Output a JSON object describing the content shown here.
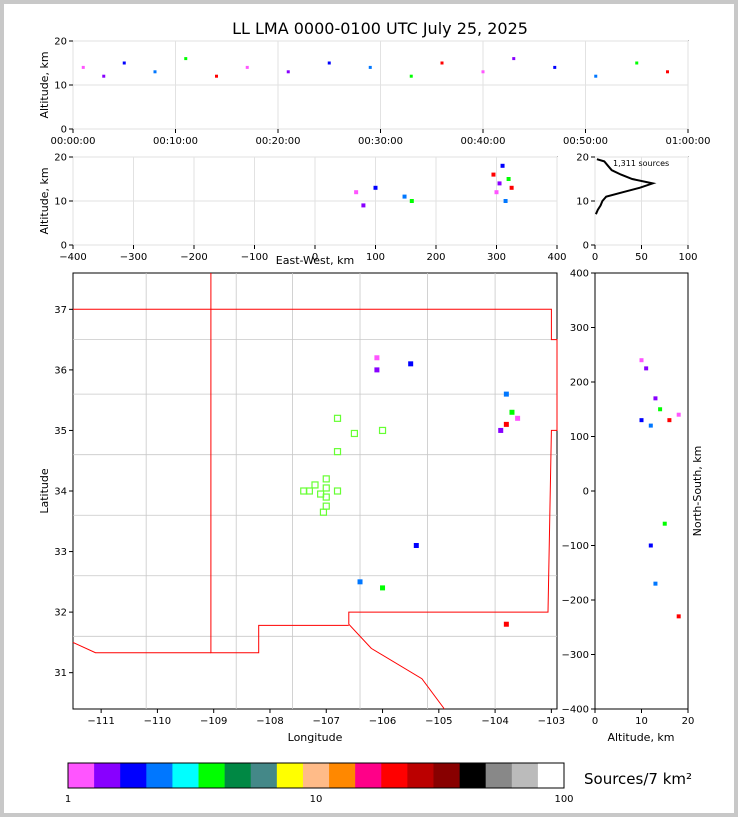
{
  "title": "LL LMA 0000-0100 UTC July 25, 2025",
  "chart_data": [
    {
      "type": "scatter",
      "panel": "time-height",
      "ylabel": "Altitude, km",
      "xlim": [
        "00:00:00",
        "01:00:00"
      ],
      "ylim": [
        0,
        20
      ],
      "xticks": [
        "00:00:00",
        "00:10:00",
        "00:20:00",
        "00:30:00",
        "00:40:00",
        "00:50:00",
        "01:00:00"
      ],
      "yticks": [
        0,
        10,
        20
      ],
      "grid": true,
      "points": [
        {
          "minute": 1,
          "alt": 14
        },
        {
          "minute": 3,
          "alt": 12
        },
        {
          "minute": 5,
          "alt": 15
        },
        {
          "minute": 8,
          "alt": 13
        },
        {
          "minute": 11,
          "alt": 16
        },
        {
          "minute": 14,
          "alt": 12
        },
        {
          "minute": 17,
          "alt": 14
        },
        {
          "minute": 21,
          "alt": 13
        },
        {
          "minute": 25,
          "alt": 15
        },
        {
          "minute": 29,
          "alt": 14
        },
        {
          "minute": 33,
          "alt": 12
        },
        {
          "minute": 36,
          "alt": 15
        },
        {
          "minute": 40,
          "alt": 13
        },
        {
          "minute": 43,
          "alt": 16
        },
        {
          "minute": 47,
          "alt": 14
        },
        {
          "minute": 51,
          "alt": 12
        },
        {
          "minute": 55,
          "alt": 15
        },
        {
          "minute": 58,
          "alt": 13
        }
      ]
    },
    {
      "type": "scatter",
      "panel": "east-west-height",
      "xlabel": "East-West, km",
      "ylabel": "Altitude, km",
      "xlim": [
        -400,
        400
      ],
      "ylim": [
        0,
        20
      ],
      "xticks": [
        -400,
        -300,
        -200,
        -100,
        0,
        100,
        200,
        300,
        400
      ],
      "yticks": [
        0,
        10,
        20
      ],
      "grid": true,
      "points": [
        {
          "x": 68,
          "alt": 12
        },
        {
          "x": 80,
          "alt": 9
        },
        {
          "x": 100,
          "alt": 13
        },
        {
          "x": 148,
          "alt": 11
        },
        {
          "x": 160,
          "alt": 10
        },
        {
          "x": 295,
          "alt": 16
        },
        {
          "x": 300,
          "alt": 12
        },
        {
          "x": 305,
          "alt": 14
        },
        {
          "x": 310,
          "alt": 18
        },
        {
          "x": 315,
          "alt": 10
        },
        {
          "x": 320,
          "alt": 15
        },
        {
          "x": 325,
          "alt": 13
        }
      ]
    },
    {
      "type": "line",
      "panel": "altitude-histogram",
      "annotation": "1,311 sources",
      "xlim": [
        0,
        100
      ],
      "ylim": [
        0,
        20
      ],
      "xticks": [
        0,
        50,
        100
      ],
      "yticks": [
        0,
        10,
        20
      ],
      "grid": true,
      "profile": [
        {
          "alt": 7,
          "count": 1
        },
        {
          "alt": 8,
          "count": 3
        },
        {
          "alt": 9,
          "count": 6
        },
        {
          "alt": 10,
          "count": 8
        },
        {
          "alt": 11,
          "count": 12
        },
        {
          "alt": 12,
          "count": 30
        },
        {
          "alt": 13,
          "count": 48
        },
        {
          "alt": 14,
          "count": 62
        },
        {
          "alt": 15,
          "count": 40
        },
        {
          "alt": 16,
          "count": 28
        },
        {
          "alt": 17,
          "count": 18
        },
        {
          "alt": 18,
          "count": 14
        },
        {
          "alt": 19,
          "count": 10
        },
        {
          "alt": 19.5,
          "count": 2
        }
      ]
    },
    {
      "type": "scatter",
      "panel": "plan-view-map",
      "xlabel": "Longitude",
      "ylabel": "Latitude",
      "xlim": [
        -111.5,
        -102.9
      ],
      "ylim": [
        30.4,
        37.6
      ],
      "xticks": [
        -111,
        -110,
        -109,
        -108,
        -107,
        -106,
        -105,
        -104,
        -103
      ],
      "yticks": [
        31,
        32,
        33,
        34,
        35,
        36,
        37
      ],
      "points": [
        {
          "lon": -106.1,
          "lat": 36.2
        },
        {
          "lon": -106.1,
          "lat": 36.0
        },
        {
          "lon": -105.5,
          "lat": 36.1
        },
        {
          "lon": -103.8,
          "lat": 35.6
        },
        {
          "lon": -103.7,
          "lat": 35.3
        },
        {
          "lon": -103.8,
          "lat": 35.1
        },
        {
          "lon": -103.6,
          "lat": 35.2
        },
        {
          "lon": -103.9,
          "lat": 35.0
        },
        {
          "lon": -105.4,
          "lat": 33.1
        },
        {
          "lon": -106.4,
          "lat": 32.5
        },
        {
          "lon": -106.0,
          "lat": 32.4
        },
        {
          "lon": -103.8,
          "lat": 31.8
        }
      ],
      "stations": [
        {
          "lon": -106.8,
          "lat": 35.2
        },
        {
          "lon": -106.5,
          "lat": 34.95
        },
        {
          "lon": -106.0,
          "lat": 35.0
        },
        {
          "lon": -106.8,
          "lat": 34.65
        },
        {
          "lon": -107.0,
          "lat": 34.2
        },
        {
          "lon": -107.2,
          "lat": 34.1
        },
        {
          "lon": -107.0,
          "lat": 34.05
        },
        {
          "lon": -106.8,
          "lat": 34.0
        },
        {
          "lon": -107.3,
          "lat": 34.0
        },
        {
          "lon": -107.1,
          "lat": 33.95
        },
        {
          "lon": -107.0,
          "lat": 33.9
        },
        {
          "lon": -107.0,
          "lat": 33.75
        },
        {
          "lon": -107.05,
          "lat": 33.65
        },
        {
          "lon": -107.4,
          "lat": 34.0
        }
      ]
    },
    {
      "type": "scatter",
      "panel": "north-south-height",
      "xlabel": "Altitude, km",
      "ylabel": "North-South, km",
      "xlim": [
        0,
        20
      ],
      "ylim": [
        -400,
        400
      ],
      "xticks": [
        0,
        10,
        20
      ],
      "yticks": [
        -400,
        -300,
        -200,
        -100,
        0,
        100,
        200,
        300,
        400
      ],
      "points": [
        {
          "alt": 10,
          "y": 240
        },
        {
          "alt": 11,
          "y": 225
        },
        {
          "alt": 10,
          "y": 130
        },
        {
          "alt": 12,
          "y": 120
        },
        {
          "alt": 14,
          "y": 150
        },
        {
          "alt": 16,
          "y": 130
        },
        {
          "alt": 18,
          "y": 140
        },
        {
          "alt": 13,
          "y": 170
        },
        {
          "alt": 12,
          "y": -100
        },
        {
          "alt": 13,
          "y": -170
        },
        {
          "alt": 15,
          "y": -60
        },
        {
          "alt": 18,
          "y": -230
        }
      ]
    }
  ],
  "colorbar": {
    "label": "Sources/7 km²",
    "ticks": [
      "1",
      "10",
      "100"
    ],
    "colors": [
      "#ff55ff",
      "#8800ff",
      "#0000ff",
      "#0077ff",
      "#00ffff",
      "#00ff00",
      "#008844",
      "#448888",
      "#ffff00",
      "#ffbb88",
      "#ff8800",
      "#ff0088",
      "#ff0000",
      "#bb0000",
      "#880000",
      "#000000",
      "#888888",
      "#bbbbbb",
      "#ffffff"
    ]
  }
}
